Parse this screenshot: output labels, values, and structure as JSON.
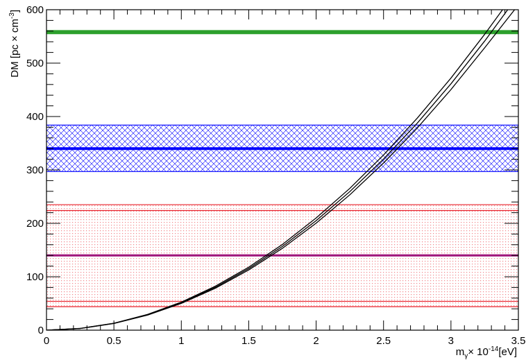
{
  "chart_data": {
    "type": "line",
    "x_axis": {
      "label_main": "m",
      "label_sub": "γ",
      "label_times": "× 10",
      "label_exp": "-14",
      "label_unit": "[eV]",
      "range": [
        0,
        3.5
      ],
      "ticks": [
        0,
        0.5,
        1,
        1.5,
        2,
        2.5,
        3,
        3.5
      ],
      "tick_labels": [
        "0",
        "0.5",
        "1",
        "1.5",
        "2",
        "2.5",
        "3",
        "3.5"
      ]
    },
    "y_axis": {
      "label_main": "DM  [pc × cm",
      "label_exp": "-3",
      "label_end": "]",
      "range": [
        0,
        600
      ],
      "ticks": [
        0,
        100,
        200,
        300,
        400,
        500,
        600
      ],
      "tick_labels": [
        "0",
        "100",
        "200",
        "300",
        "400",
        "500",
        "600"
      ]
    },
    "grid": false,
    "curves": [
      {
        "x": [
          0,
          0.25,
          0.5,
          0.75,
          1.0,
          1.25,
          1.5,
          1.75,
          2.0,
          2.25,
          2.5,
          2.75,
          3.0,
          3.25,
          3.4
        ],
        "y": [
          0,
          3.3,
          13,
          29.5,
          52.5,
          82,
          118,
          160.5,
          210,
          265.5,
          328,
          397,
          472,
          554,
          606
        ]
      },
      {
        "x": [
          0,
          0.25,
          0.5,
          0.75,
          1.0,
          1.25,
          1.5,
          1.75,
          2.0,
          2.25,
          2.5,
          2.75,
          3.0,
          3.25,
          3.45
        ],
        "y": [
          0,
          3.2,
          12.8,
          28.8,
          51.3,
          80,
          115.3,
          156.8,
          205,
          259.5,
          320.3,
          387.6,
          461.3,
          541.3,
          610
        ]
      },
      {
        "x": [
          0,
          0.25,
          0.5,
          0.75,
          1.0,
          1.25,
          1.5,
          1.75,
          2.0,
          2.25,
          2.5,
          2.75,
          3.0,
          3.25,
          3.5
        ],
        "y": [
          0,
          3.1,
          12.5,
          28.2,
          50.1,
          78.2,
          112.7,
          153.3,
          200.3,
          253.5,
          313,
          378.5,
          450.5,
          528.7,
          609
        ]
      }
    ],
    "bands": [
      {
        "color": "#2ca02c",
        "central": 558,
        "low": 555,
        "high": 561,
        "pattern": "dense"
      },
      {
        "color": "#0000ff",
        "central": 340,
        "low": 297,
        "high": 384,
        "pattern": "crosshatch"
      },
      {
        "color": "#e8202a",
        "central": null,
        "low": 44,
        "high": 235,
        "pattern": "dots"
      },
      {
        "color": "#e8202a",
        "central": null,
        "low": 54,
        "high": 224,
        "pattern": "none"
      },
      {
        "color": "#a0147a",
        "central": 140,
        "low": 138,
        "high": 142,
        "pattern": "solid"
      }
    ]
  }
}
